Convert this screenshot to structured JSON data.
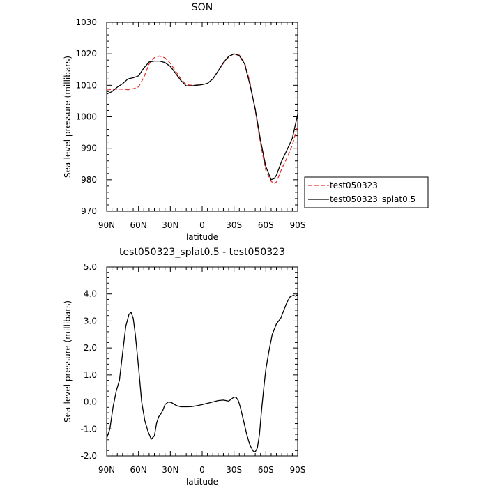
{
  "chart_data": [
    {
      "type": "line",
      "title": "SON",
      "xlabel": "latitude",
      "ylabel": "Sea-level pressure (millibars)",
      "xlim": [
        90,
        -90
      ],
      "ylim": [
        970,
        1030
      ],
      "xticks": [
        90,
        60,
        30,
        0,
        -30,
        -60,
        -90
      ],
      "xtick_labels": [
        "90N",
        "60N",
        "30N",
        "0",
        "30S",
        "60S",
        "90S"
      ],
      "yticks": [
        970,
        980,
        990,
        1000,
        1010,
        1020,
        1030
      ],
      "ytick_labels": [
        "970",
        "980",
        "990",
        "1000",
        "1010",
        "1020",
        "1030"
      ],
      "legend_position": "right",
      "series": [
        {
          "name": "test050323",
          "color": "#e8342e",
          "dash": "dashed",
          "x": [
            90,
            85,
            80,
            75,
            70,
            65,
            60,
            55,
            50,
            45,
            40,
            35,
            30,
            25,
            20,
            15,
            10,
            5,
            0,
            -5,
            -10,
            -15,
            -20,
            -25,
            -30,
            -35,
            -40,
            -45,
            -50,
            -55,
            -60,
            -65,
            -68,
            -70,
            -75,
            -80,
            -85,
            -90
          ],
          "values": [
            1008.5,
            1008.7,
            1008.8,
            1008.8,
            1008.6,
            1008.9,
            1009.5,
            1012.5,
            1016.8,
            1018.8,
            1019.3,
            1018.7,
            1017.0,
            1014.5,
            1012.0,
            1010.2,
            1010.0,
            1010.1,
            1010.3,
            1010.6,
            1012.0,
            1014.5,
            1017.0,
            1019.0,
            1020.0,
            1019.6,
            1017.2,
            1011.0,
            1002.0,
            991.5,
            983.0,
            979.5,
            978.8,
            979.3,
            983.5,
            987.0,
            991.0,
            997.5
          ]
        },
        {
          "name": "test050323_splat0.5",
          "color": "#000000",
          "dash": "solid",
          "x": [
            90,
            85,
            80,
            75,
            70,
            65,
            60,
            55,
            50,
            45,
            40,
            35,
            30,
            25,
            20,
            15,
            10,
            5,
            0,
            -5,
            -10,
            -15,
            -20,
            -25,
            -30,
            -35,
            -40,
            -45,
            -50,
            -55,
            -60,
            -65,
            -68,
            -70,
            -75,
            -80,
            -85,
            -90
          ],
          "values": [
            1007.2,
            1008.0,
            1009.4,
            1010.5,
            1012.0,
            1012.4,
            1013.0,
            1015.5,
            1017.4,
            1017.7,
            1017.7,
            1017.2,
            1016.0,
            1013.8,
            1011.5,
            1009.8,
            1009.8,
            1010.0,
            1010.2,
            1010.6,
            1012.0,
            1014.5,
            1017.2,
            1019.2,
            1020.0,
            1019.4,
            1016.8,
            1010.2,
            1002.5,
            992.5,
            984.2,
            980.0,
            980.4,
            981.5,
            986.0,
            989.5,
            993.2,
            1000.8
          ]
        }
      ]
    },
    {
      "type": "line",
      "title": "test050323_splat0.5 - test050323",
      "xlabel": "latitude",
      "ylabel": "Sea-level pressure (millibars)",
      "xlim": [
        90,
        -90
      ],
      "ylim": [
        -2.0,
        5.0
      ],
      "xticks": [
        90,
        60,
        30,
        0,
        -30,
        -60,
        -90
      ],
      "xtick_labels": [
        "90N",
        "60N",
        "30N",
        "0",
        "30S",
        "60S",
        "90S"
      ],
      "yticks": [
        -2.0,
        -1.0,
        0.0,
        1.0,
        2.0,
        3.0,
        4.0,
        5.0
      ],
      "ytick_labels": [
        "-2.0",
        "-1.0",
        "0.0",
        "1.0",
        "2.0",
        "3.0",
        "4.0",
        "5.0"
      ],
      "series": [
        {
          "color": "#000000",
          "dash": "solid",
          "x": [
            90,
            87,
            84,
            81,
            78,
            75,
            72,
            69,
            67,
            65,
            63,
            60,
            57,
            54,
            51,
            48,
            45,
            43,
            41,
            39,
            37,
            35,
            32,
            29,
            26,
            23,
            20,
            17,
            14,
            10,
            5,
            0,
            -5,
            -10,
            -15,
            -20,
            -25,
            -28,
            -30,
            -32,
            -34,
            -36,
            -39,
            -42,
            -45,
            -48,
            -50,
            -52,
            -54,
            -56,
            -58,
            -60,
            -63,
            -66,
            -70,
            -74,
            -77,
            -80,
            -83,
            -86,
            -88,
            -90
          ],
          "values": [
            -1.35,
            -1.0,
            -0.2,
            0.4,
            0.8,
            1.8,
            2.8,
            3.25,
            3.32,
            3.1,
            2.5,
            1.3,
            0.0,
            -0.7,
            -1.1,
            -1.38,
            -1.25,
            -0.8,
            -0.55,
            -0.45,
            -0.3,
            -0.1,
            0.0,
            -0.02,
            -0.1,
            -0.15,
            -0.18,
            -0.18,
            -0.18,
            -0.17,
            -0.14,
            -0.1,
            -0.05,
            0.0,
            0.05,
            0.07,
            0.03,
            0.12,
            0.18,
            0.17,
            0.05,
            -0.2,
            -0.7,
            -1.2,
            -1.6,
            -1.82,
            -1.85,
            -1.7,
            -1.2,
            -0.3,
            0.5,
            1.2,
            1.9,
            2.5,
            2.9,
            3.1,
            3.4,
            3.7,
            3.9,
            3.95,
            3.92,
            3.98
          ]
        }
      ]
    }
  ]
}
